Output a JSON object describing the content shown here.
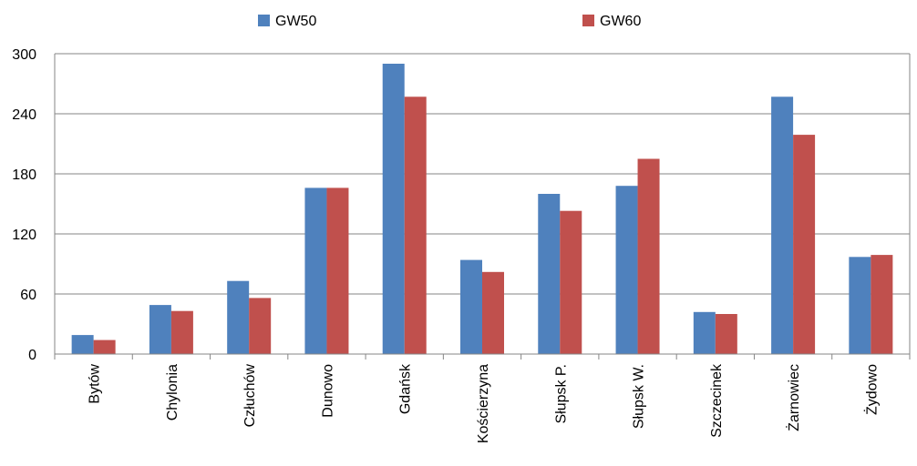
{
  "chart_data": {
    "type": "bar",
    "categories": [
      "Bytów",
      "Chylonia",
      "Człuchów",
      "Dunowo",
      "Gdańsk",
      "Kościerzyna",
      "Słupsk P.",
      "Słupsk W.",
      "Szczecinek",
      "Żarnowiec",
      "Żydowo"
    ],
    "series": [
      {
        "name": "GW50",
        "color": "#4F81BD",
        "values": [
          19,
          49,
          73,
          166,
          290,
          94,
          160,
          168,
          42,
          257,
          97
        ]
      },
      {
        "name": "GW60",
        "color": "#C0504D",
        "values": [
          14,
          43,
          56,
          166,
          257,
          82,
          143,
          195,
          40,
          219,
          99
        ]
      }
    ],
    "y_ticks": [
      "0",
      "60",
      "120",
      "180",
      "240",
      "300"
    ],
    "ylim": [
      0,
      300
    ],
    "grid": true,
    "legend_position": "top",
    "title": "",
    "xlabel": "",
    "ylabel": ""
  }
}
